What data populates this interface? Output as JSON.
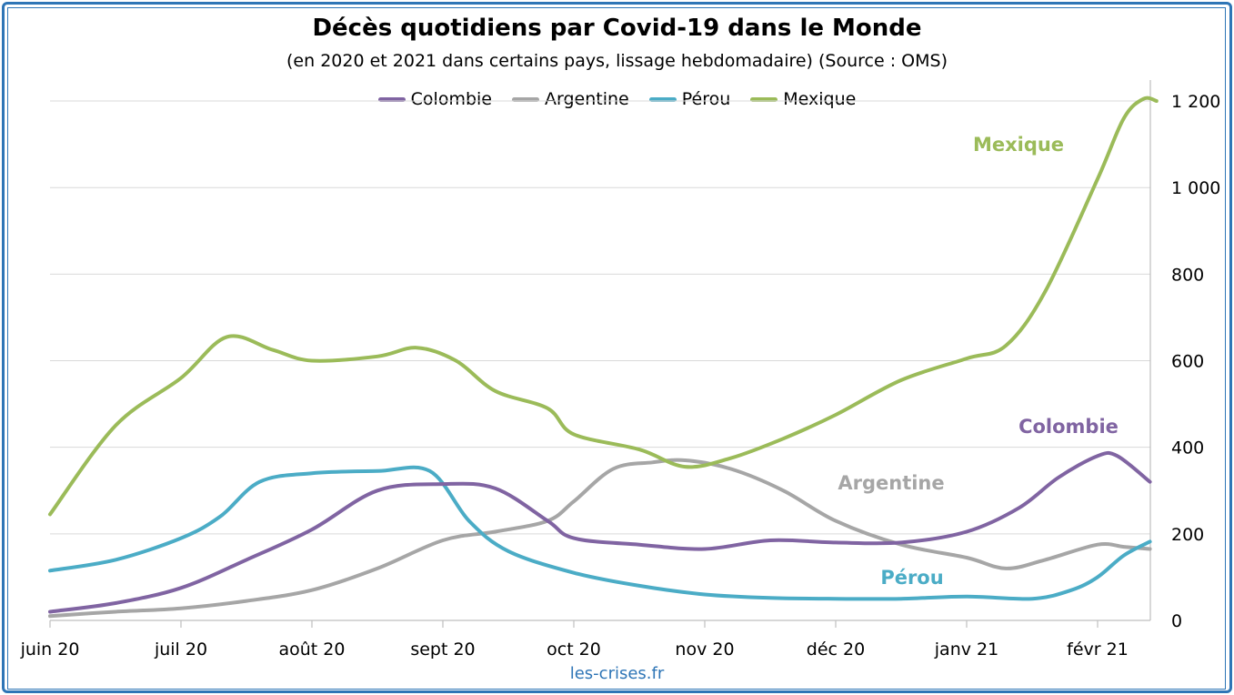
{
  "chart_data": {
    "type": "line",
    "title": "Décès quotidiens par Covid-19 dans le Monde",
    "subtitle": "(en 2020 et 2021 dans certains pays, lissage hebdomadaire) (Source : OMS)",
    "source": "les-crises.fr",
    "x_tick_labels": [
      "juin 20",
      "juil 20",
      "août 20",
      "sept 20",
      "oct 20",
      "nov 20",
      "déc 20",
      "janv 21",
      "févr 21"
    ],
    "y_ticks": [
      0,
      200,
      400,
      600,
      800,
      1000,
      1200
    ],
    "y_tick_labels": [
      "0",
      "200",
      "400",
      "600",
      "800",
      "1 000",
      "1 200"
    ],
    "ylim": [
      0,
      1250
    ],
    "y_axis_side": "right",
    "grid": true,
    "legend_position": "top-center",
    "x_note": "x values are months since 1 June 2020",
    "series": [
      {
        "name": "Colombie",
        "color": "#8064a2",
        "label": "Colombie",
        "points": [
          [
            0,
            20
          ],
          [
            0.5,
            40
          ],
          [
            1,
            75
          ],
          [
            1.5,
            140
          ],
          [
            2,
            210
          ],
          [
            2.5,
            300
          ],
          [
            3,
            315
          ],
          [
            3.4,
            305
          ],
          [
            3.8,
            230
          ],
          [
            4,
            190
          ],
          [
            4.5,
            175
          ],
          [
            5,
            165
          ],
          [
            5.5,
            185
          ],
          [
            6,
            180
          ],
          [
            6.5,
            180
          ],
          [
            7,
            205
          ],
          [
            7.4,
            260
          ],
          [
            7.7,
            330
          ],
          [
            8,
            380
          ],
          [
            8.15,
            380
          ],
          [
            8.4,
            320
          ]
        ]
      },
      {
        "name": "Argentine",
        "color": "#a6a6a6",
        "label": "Argentine",
        "points": [
          [
            0,
            10
          ],
          [
            0.5,
            20
          ],
          [
            1,
            28
          ],
          [
            1.5,
            45
          ],
          [
            2,
            70
          ],
          [
            2.5,
            120
          ],
          [
            3,
            185
          ],
          [
            3.4,
            205
          ],
          [
            3.8,
            230
          ],
          [
            4,
            275
          ],
          [
            4.3,
            350
          ],
          [
            4.6,
            365
          ],
          [
            4.85,
            370
          ],
          [
            5.2,
            350
          ],
          [
            5.6,
            300
          ],
          [
            6,
            230
          ],
          [
            6.5,
            175
          ],
          [
            7,
            145
          ],
          [
            7.3,
            120
          ],
          [
            7.6,
            140
          ],
          [
            8,
            175
          ],
          [
            8.2,
            170
          ],
          [
            8.4,
            165
          ]
        ]
      },
      {
        "name": "Pérou",
        "color": "#4bacc6",
        "label": "Pérou",
        "points": [
          [
            0,
            115
          ],
          [
            0.5,
            140
          ],
          [
            1,
            190
          ],
          [
            1.3,
            240
          ],
          [
            1.6,
            320
          ],
          [
            2,
            340
          ],
          [
            2.5,
            345
          ],
          [
            2.9,
            345
          ],
          [
            3.2,
            230
          ],
          [
            3.5,
            160
          ],
          [
            4,
            110
          ],
          [
            4.5,
            80
          ],
          [
            5,
            60
          ],
          [
            5.5,
            52
          ],
          [
            6,
            50
          ],
          [
            6.5,
            50
          ],
          [
            7,
            55
          ],
          [
            7.5,
            50
          ],
          [
            7.8,
            70
          ],
          [
            8,
            100
          ],
          [
            8.2,
            150
          ],
          [
            8.4,
            182
          ]
        ]
      },
      {
        "name": "Mexique",
        "color": "#9bbb59",
        "label": "Mexique",
        "points": [
          [
            0,
            245
          ],
          [
            0.5,
            450
          ],
          [
            1,
            560
          ],
          [
            1.35,
            655
          ],
          [
            1.7,
            625
          ],
          [
            2,
            600
          ],
          [
            2.5,
            610
          ],
          [
            2.8,
            630
          ],
          [
            3.1,
            600
          ],
          [
            3.4,
            530
          ],
          [
            3.8,
            490
          ],
          [
            4,
            430
          ],
          [
            4.5,
            395
          ],
          [
            4.85,
            355
          ],
          [
            5.2,
            375
          ],
          [
            5.6,
            420
          ],
          [
            6,
            475
          ],
          [
            6.5,
            555
          ],
          [
            7,
            605
          ],
          [
            7.3,
            635
          ],
          [
            7.6,
            760
          ],
          [
            8,
            1020
          ],
          [
            8.2,
            1160
          ],
          [
            8.35,
            1205
          ],
          [
            8.45,
            1200
          ]
        ]
      }
    ]
  }
}
